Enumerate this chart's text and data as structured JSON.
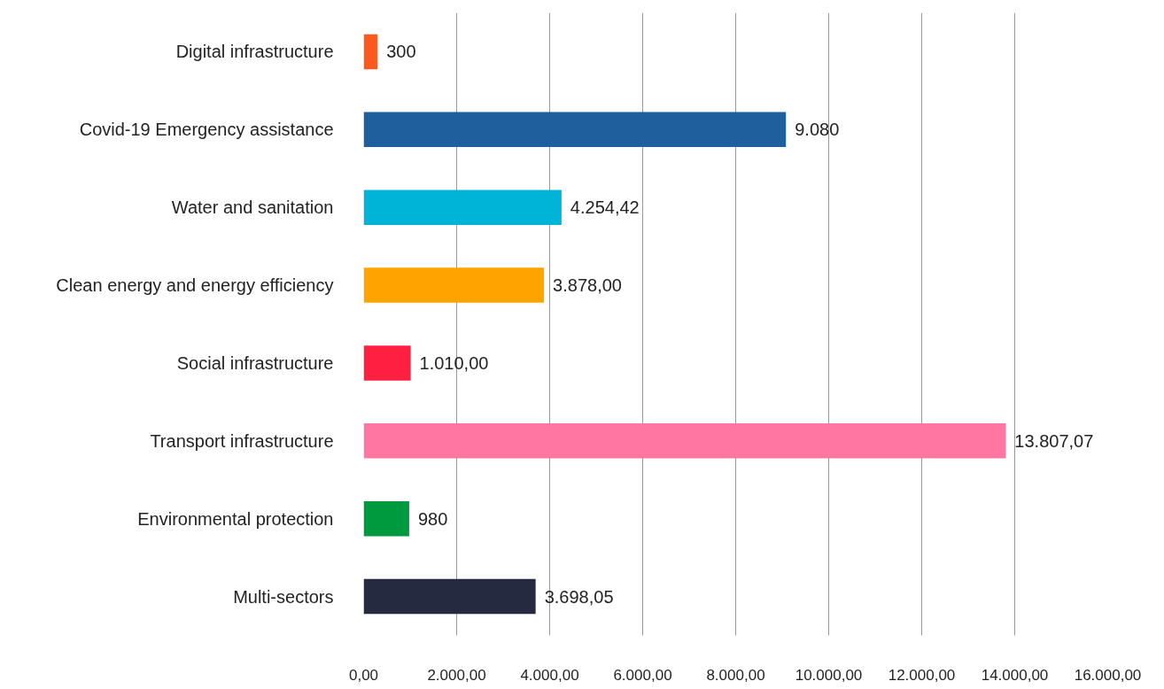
{
  "chart_data": {
    "type": "bar",
    "orientation": "horizontal",
    "categories": [
      "Digital infrastructure",
      "Covid-19 Emergency assistance",
      "Water and sanitation",
      "Clean energy and energy efficiency",
      "Social infrastructure",
      "Transport infrastructure",
      "Environmental protection",
      "Multi-sectors"
    ],
    "values": [
      300,
      9080,
      4254.42,
      3878,
      1010,
      13807.07,
      980,
      3698.05
    ],
    "value_labels": [
      "300",
      "9.080",
      "4.254,42",
      "3.878,00",
      "1.010,00",
      "13.807,07",
      "980",
      "3.698,05"
    ],
    "colors": [
      "#fc5a1c",
      "#1f5f9e",
      "#00b4d8",
      "#ffa300",
      "#ff1f40",
      "#ff76a3",
      "#009a3e",
      "#262a40"
    ],
    "xlim": [
      0,
      16000
    ],
    "xticks": [
      {
        "value": 0,
        "label": "0,00"
      },
      {
        "value": 2000,
        "label": "2.000,00"
      },
      {
        "value": 4000,
        "label": "4.000,00"
      },
      {
        "value": 6000,
        "label": "6.000,00"
      },
      {
        "value": 8000,
        "label": "8.000,00"
      },
      {
        "value": 10000,
        "label": "10.000,00"
      },
      {
        "value": 12000,
        "label": "12.000,00"
      },
      {
        "value": 14000,
        "label": "14.000,00"
      },
      {
        "value": 16000,
        "label": "16.000,00"
      }
    ],
    "grid": "x"
  }
}
